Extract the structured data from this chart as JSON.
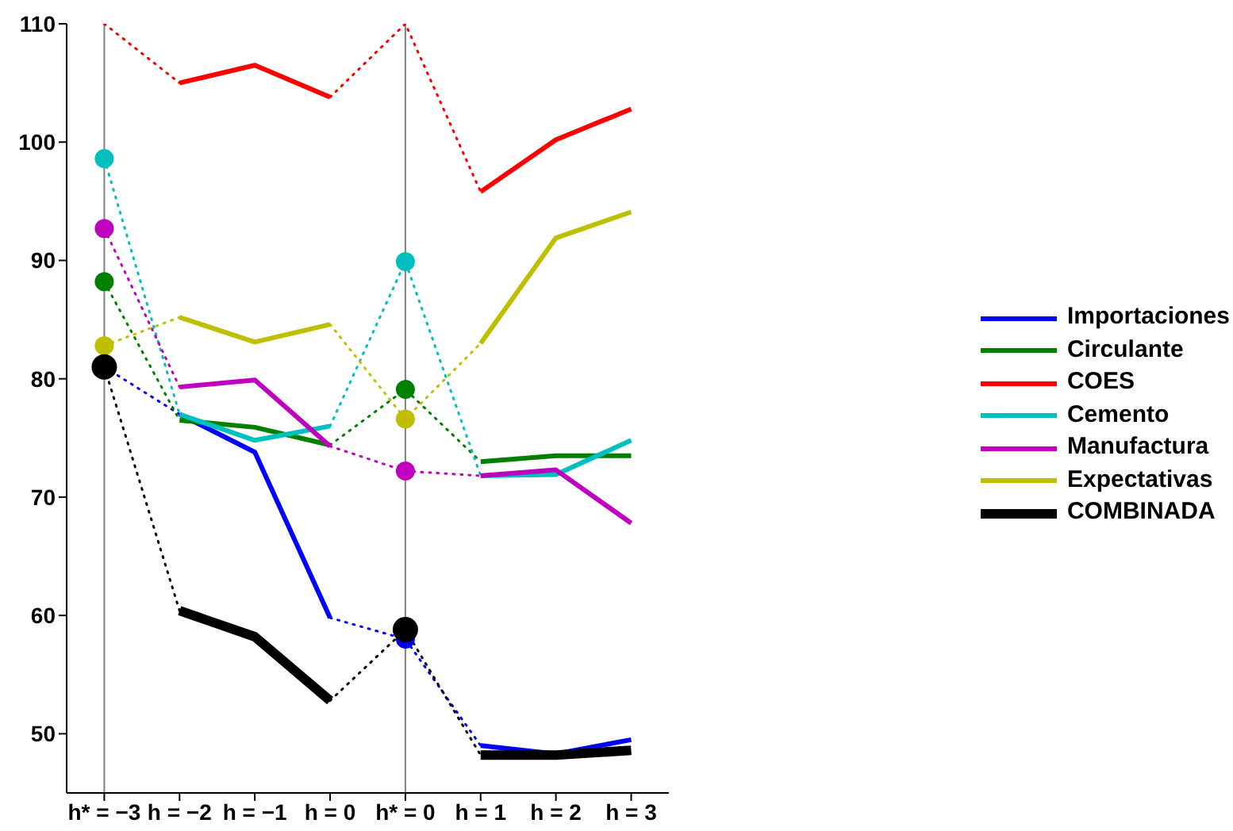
{
  "chart_data": {
    "type": "line",
    "categories": [
      "h* = −3",
      "h = −2",
      "h = −1",
      "h = 0",
      "h* = 0",
      "h = 1",
      "h = 2",
      "h = 3"
    ],
    "ylim": [
      45,
      110
    ],
    "yticks": [
      50,
      60,
      70,
      80,
      90,
      100,
      110
    ],
    "legend": "right",
    "line_style": "solid",
    "ref_lines": [
      {
        "axis": "x",
        "value": "h* = −3",
        "color": "#808080"
      },
      {
        "axis": "x",
        "value": "h* = 0",
        "color": "#808080"
      }
    ],
    "series": [
      {
        "name": "Importaciones",
        "color": "#0000ff",
        "values": [
          81.0,
          77.0,
          73.8,
          59.8,
          58.0,
          49.0,
          48.3,
          49.5
        ]
      },
      {
        "name": "Circulante",
        "color": "#008000",
        "values": [
          88.2,
          76.5,
          75.9,
          74.4,
          79.1,
          73.0,
          73.5,
          73.5
        ]
      },
      {
        "name": "COES",
        "color": "#ff0000",
        "values": [
          110,
          105.0,
          106.5,
          103.8,
          110,
          95.8,
          100.2,
          102.8
        ]
      },
      {
        "name": "Cemento",
        "color": "#00bfbf",
        "values": [
          98.6,
          77.0,
          74.8,
          76.0,
          89.9,
          71.8,
          71.9,
          74.8
        ]
      },
      {
        "name": "Manufactura",
        "color": "#bf00bf",
        "values": [
          92.7,
          79.3,
          79.9,
          74.3,
          72.2,
          71.8,
          72.3,
          67.8
        ]
      },
      {
        "name": "Expectativas",
        "color": "#bfbf00",
        "values": [
          82.8,
          85.2,
          83.1,
          84.6,
          76.6,
          83.0,
          91.9,
          94.1
        ]
      },
      {
        "name": "COMBINADA",
        "color": "#000000",
        "values": [
          81.0,
          60.4,
          58.2,
          52.8,
          58.8,
          48.2,
          48.2,
          48.6
        ]
      },
      {
        "type": "scatter",
        "marker": "circle",
        "color": "#0000ff",
        "values": [
          null,
          null,
          null,
          null,
          58.0,
          null,
          null,
          null
        ]
      },
      {
        "type": "scatter",
        "marker": "circle",
        "color": "#008000",
        "values": [
          88.2,
          null,
          null,
          null,
          79.1,
          null,
          null,
          null
        ]
      },
      {
        "type": "scatter",
        "marker": "circle",
        "color": "#00bfbf",
        "values": [
          98.6,
          null,
          null,
          null,
          89.9,
          null,
          null,
          null
        ]
      },
      {
        "type": "scatter",
        "marker": "circle",
        "color": "#bf00bf",
        "values": [
          92.7,
          null,
          null,
          null,
          72.2,
          null,
          null,
          null
        ]
      },
      {
        "type": "scatter",
        "marker": "circle",
        "color": "#bfbf00",
        "values": [
          82.8,
          null,
          null,
          null,
          76.6,
          null,
          null,
          null
        ]
      },
      {
        "type": "scatter",
        "marker": "circle",
        "color": "#000000",
        "values": [
          81.0,
          null,
          null,
          null,
          58.8,
          null,
          null,
          null
        ]
      }
    ]
  }
}
